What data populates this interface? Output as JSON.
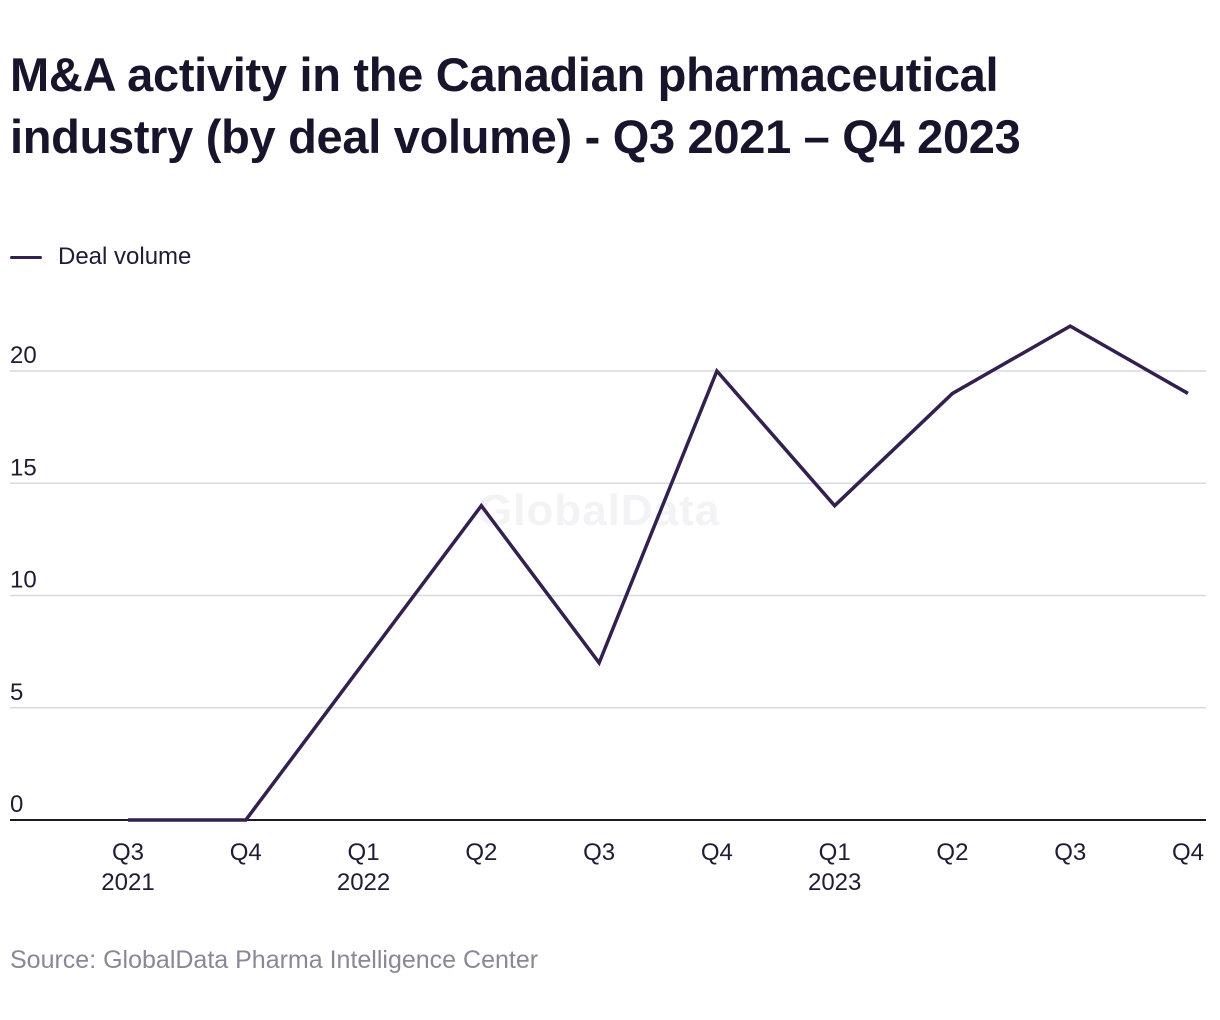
{
  "chart_data": {
    "type": "line",
    "title": "M&A activity in the Canadian pharmaceutical industry (by deal volume) - Q3 2021 – Q4 2023",
    "categories": [
      {
        "quarter": "Q3",
        "year": "2021"
      },
      {
        "quarter": "Q4",
        "year": ""
      },
      {
        "quarter": "Q1",
        "year": "2022"
      },
      {
        "quarter": "Q2",
        "year": ""
      },
      {
        "quarter": "Q3",
        "year": ""
      },
      {
        "quarter": "Q4",
        "year": ""
      },
      {
        "quarter": "Q1",
        "year": "2023"
      },
      {
        "quarter": "Q2",
        "year": ""
      },
      {
        "quarter": "Q3",
        "year": ""
      },
      {
        "quarter": "Q4",
        "year": ""
      }
    ],
    "series": [
      {
        "name": "Deal volume",
        "values": [
          0,
          0,
          7,
          14,
          7,
          20,
          14,
          19,
          22,
          19
        ],
        "color": "#33204f"
      }
    ],
    "yticks": [
      0,
      5,
      10,
      15,
      20
    ],
    "ylim": [
      0,
      22
    ],
    "xlabel": "",
    "ylabel": "",
    "grid": true,
    "legend": "top-left"
  },
  "source": "Source: GlobalData Pharma Intelligence Center",
  "watermark": "GlobalData"
}
